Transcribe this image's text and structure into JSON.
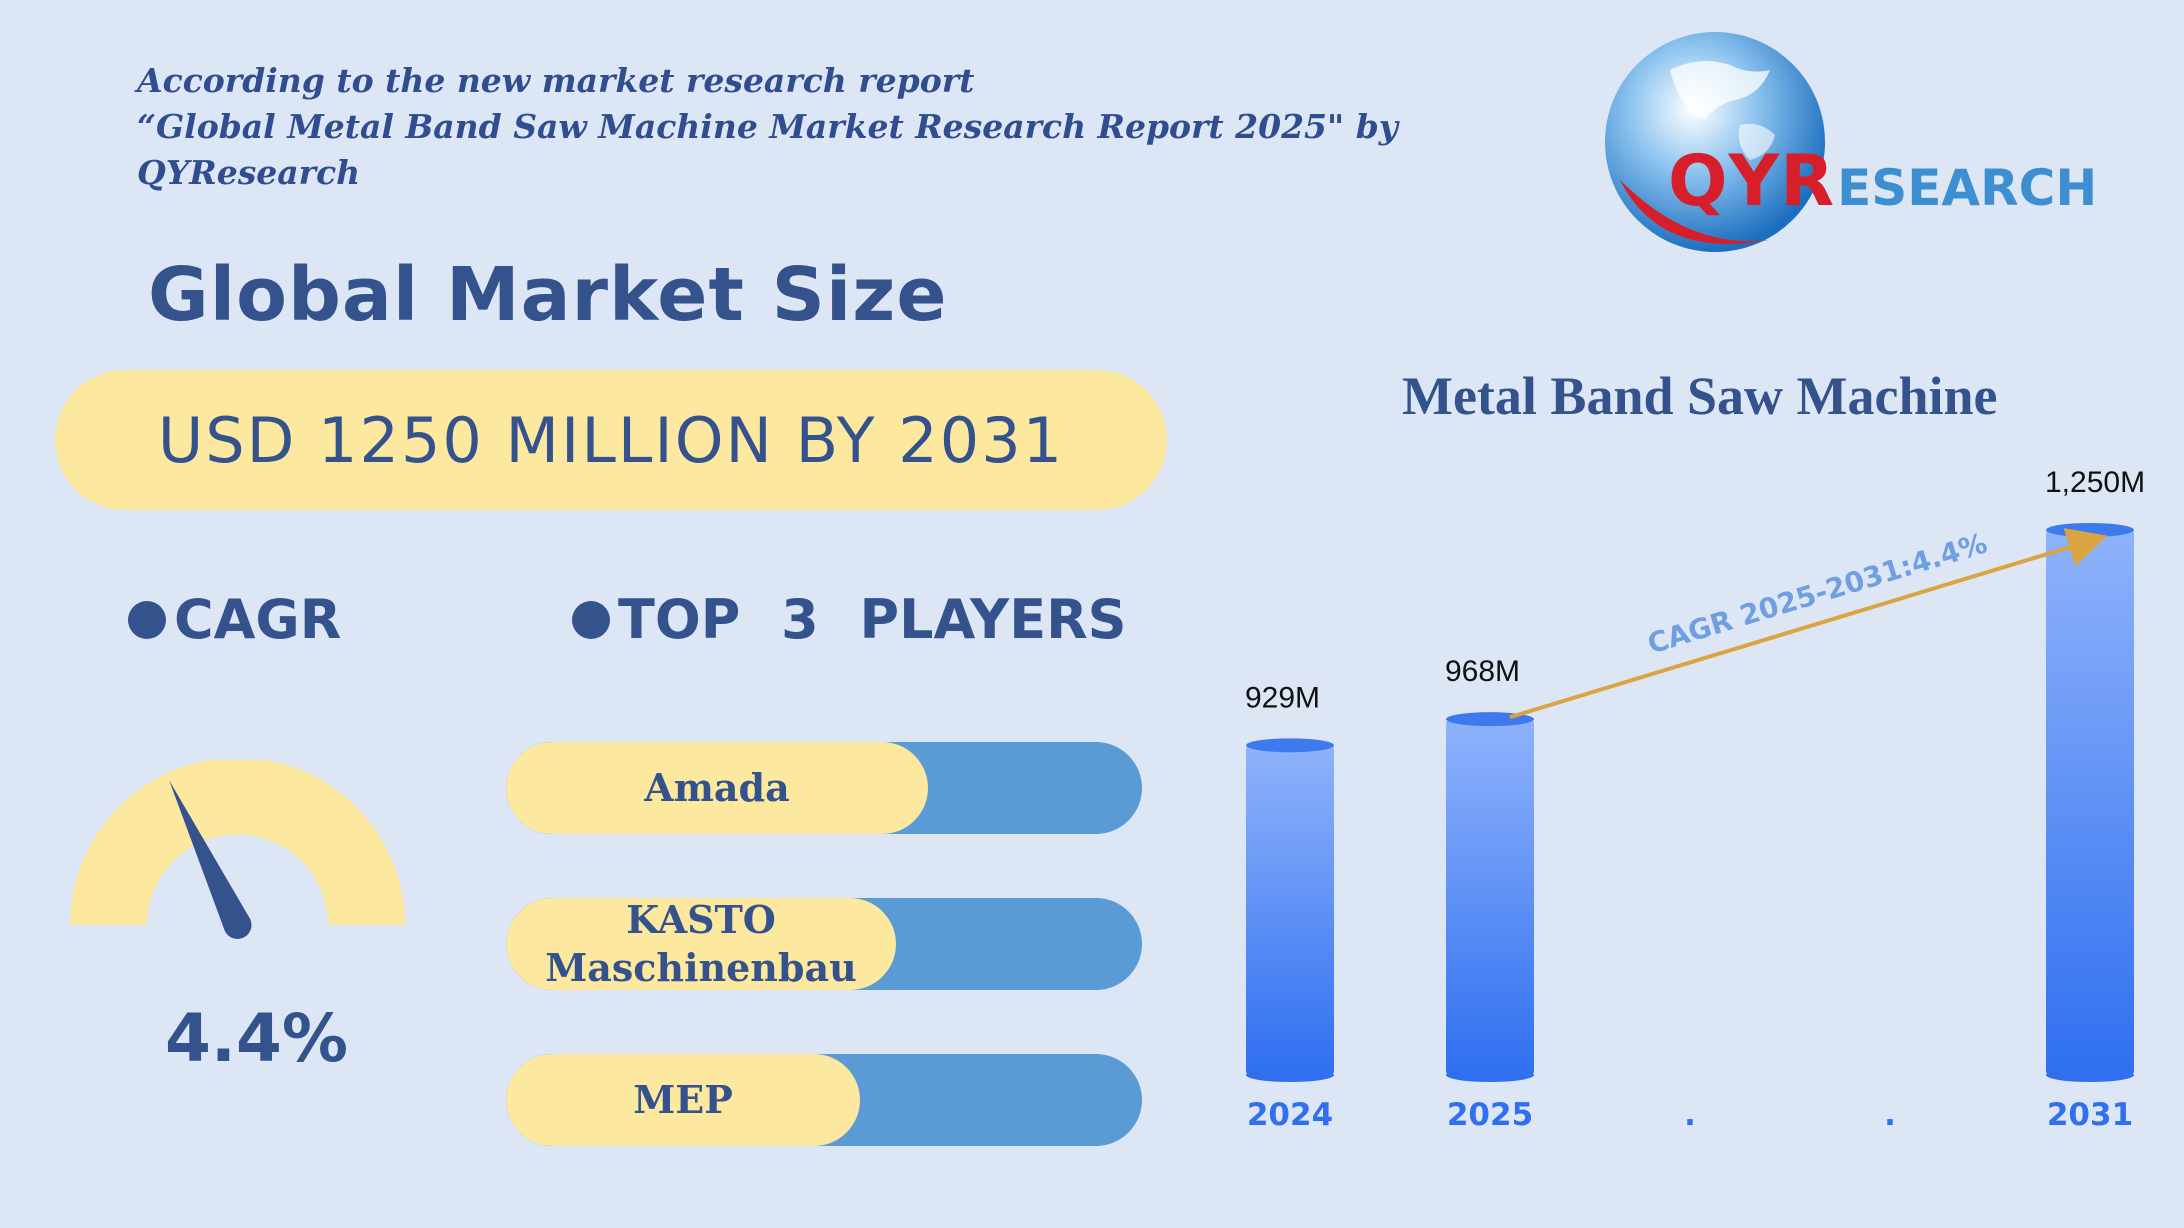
{
  "intro": {
    "line1": "According to the new market research report",
    "line2": "“Global Metal Band Saw Machine Market Research Report 2025\" by",
    "line3": "QYResearch"
  },
  "logo": {
    "brand_big": "QYR",
    "brand_rest": "ESEARCH"
  },
  "market_title": "Global Market Size",
  "market_size": "USD 1250 MILLION BY 2031",
  "cagr": {
    "label": "CAGR",
    "value": "4.4%",
    "level_percent": 4.4
  },
  "top_players": {
    "label": "TOP 3 PLAYERS",
    "items": [
      {
        "name": "Amada"
      },
      {
        "name": "KASTO Maschinenbau"
      },
      {
        "name": "MEP"
      }
    ]
  },
  "colors": {
    "background": "#dde6f5",
    "accent_navy": "#34528c",
    "pill_yellow": "#fde8a0",
    "bar_blue": "#5b9bd5",
    "arrow": "#d9a441",
    "logo_red": "#d71f2b",
    "logo_blue": "#3d8fd1"
  },
  "chart_data": {
    "type": "bar",
    "title": "Metal Band Saw Machine",
    "categories": [
      "2024",
      "2025",
      ".",
      ".",
      "2031"
    ],
    "values": [
      929,
      968,
      null,
      null,
      1250
    ],
    "data_labels": [
      "929M",
      "968M",
      "",
      "",
      "1,250M"
    ],
    "annotation": "CAGR 2025-2031:4.4%",
    "xlabel": "",
    "ylabel": "",
    "grid": false,
    "legend": "none"
  }
}
